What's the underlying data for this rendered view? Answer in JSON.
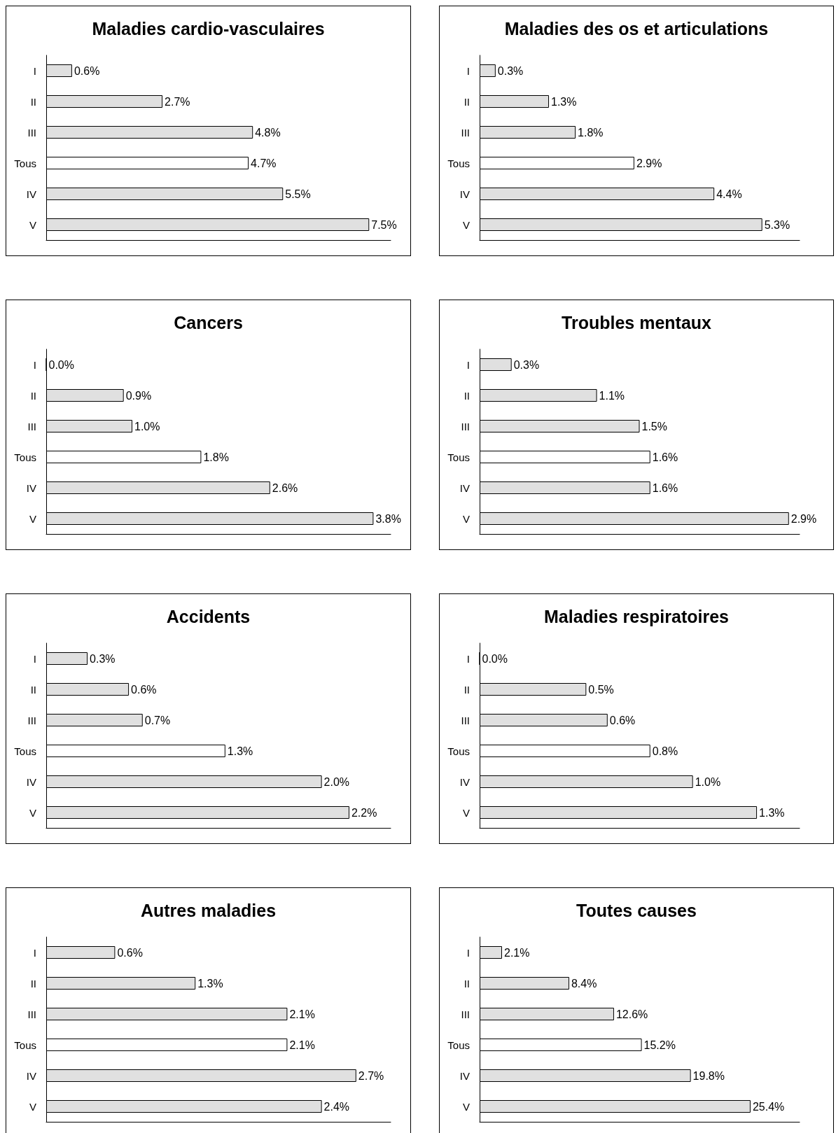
{
  "chart_data": [
    {
      "type": "bar",
      "orientation": "horizontal",
      "title": "Maladies cardio-vasculaires",
      "categories": [
        "I",
        "II",
        "III",
        "Tous",
        "IV",
        "V"
      ],
      "values": [
        0.6,
        2.7,
        4.8,
        4.7,
        5.5,
        7.5
      ],
      "value_labels": [
        "0.6%",
        "2.7%",
        "4.8%",
        "4.7%",
        "5.5%",
        "7.5%"
      ],
      "colors": [
        "#e0e0e0",
        "#e0e0e0",
        "#e0e0e0",
        "#ffffff",
        "#e0e0e0",
        "#e0e0e0"
      ],
      "tick_labels": "y",
      "grid": false
    },
    {
      "type": "bar",
      "orientation": "horizontal",
      "title": "Maladies des os et articulations",
      "categories": [
        "I",
        "II",
        "III",
        "Tous",
        "IV",
        "V"
      ],
      "values": [
        0.3,
        1.3,
        1.8,
        2.9,
        4.4,
        5.3
      ],
      "value_labels": [
        "0.3%",
        "1.3%",
        "1.8%",
        "2.9%",
        "4.4%",
        "5.3%"
      ],
      "colors": [
        "#e0e0e0",
        "#e0e0e0",
        "#e0e0e0",
        "#ffffff",
        "#e0e0e0",
        "#e0e0e0"
      ],
      "tick_labels": "y",
      "grid": false
    },
    {
      "type": "bar",
      "orientation": "horizontal",
      "title": "Cancers",
      "categories": [
        "I",
        "II",
        "III",
        "Tous",
        "IV",
        "V"
      ],
      "values": [
        0.0,
        0.9,
        1.0,
        1.8,
        2.6,
        3.8
      ],
      "value_labels": [
        "0.0%",
        "0.9%",
        "1.0%",
        "1.8%",
        "2.6%",
        "3.8%"
      ],
      "colors": [
        "#e0e0e0",
        "#e0e0e0",
        "#e0e0e0",
        "#ffffff",
        "#e0e0e0",
        "#e0e0e0"
      ],
      "tick_labels": "y",
      "grid": false
    },
    {
      "type": "bar",
      "orientation": "horizontal",
      "title": "Troubles mentaux",
      "categories": [
        "I",
        "II",
        "III",
        "Tous",
        "IV",
        "V"
      ],
      "values": [
        0.3,
        1.1,
        1.5,
        1.6,
        1.6,
        2.9
      ],
      "value_labels": [
        "0.3%",
        "1.1%",
        "1.5%",
        "1.6%",
        "1.6%",
        "2.9%"
      ],
      "colors": [
        "#e0e0e0",
        "#e0e0e0",
        "#e0e0e0",
        "#ffffff",
        "#e0e0e0",
        "#e0e0e0"
      ],
      "tick_labels": "y",
      "grid": false
    },
    {
      "type": "bar",
      "orientation": "horizontal",
      "title": "Accidents",
      "categories": [
        "I",
        "II",
        "III",
        "Tous",
        "IV",
        "V"
      ],
      "values": [
        0.3,
        0.6,
        0.7,
        1.3,
        2.0,
        2.2
      ],
      "value_labels": [
        "0.3%",
        "0.6%",
        "0.7%",
        "1.3%",
        "2.0%",
        "2.2%"
      ],
      "colors": [
        "#e0e0e0",
        "#e0e0e0",
        "#e0e0e0",
        "#ffffff",
        "#e0e0e0",
        "#e0e0e0"
      ],
      "tick_labels": "y",
      "grid": false
    },
    {
      "type": "bar",
      "orientation": "horizontal",
      "title": "Maladies respiratoires",
      "categories": [
        "I",
        "II",
        "III",
        "Tous",
        "IV",
        "V"
      ],
      "values": [
        0.0,
        0.5,
        0.6,
        0.8,
        1.0,
        1.3
      ],
      "value_labels": [
        "0.0%",
        "0.5%",
        "0.6%",
        "0.8%",
        "1.0%",
        "1.3%"
      ],
      "colors": [
        "#e0e0e0",
        "#e0e0e0",
        "#e0e0e0",
        "#ffffff",
        "#e0e0e0",
        "#e0e0e0"
      ],
      "tick_labels": "y",
      "grid": false
    },
    {
      "type": "bar",
      "orientation": "horizontal",
      "title": "Autres maladies",
      "categories": [
        "I",
        "II",
        "III",
        "Tous",
        "IV",
        "V"
      ],
      "values": [
        0.6,
        1.3,
        2.1,
        2.1,
        2.7,
        2.4
      ],
      "value_labels": [
        "0.6%",
        "1.3%",
        "2.1%",
        "2.1%",
        "2.7%",
        "2.4%"
      ],
      "colors": [
        "#e0e0e0",
        "#e0e0e0",
        "#e0e0e0",
        "#ffffff",
        "#e0e0e0",
        "#e0e0e0"
      ],
      "tick_labels": "y",
      "grid": false
    },
    {
      "type": "bar",
      "orientation": "horizontal",
      "title": "Toutes causes",
      "categories": [
        "I",
        "II",
        "III",
        "Tous",
        "IV",
        "V"
      ],
      "values": [
        2.1,
        8.4,
        12.6,
        15.2,
        19.8,
        25.4
      ],
      "value_labels": [
        "2.1%",
        "8.4%",
        "12.6%",
        "15.2%",
        "19.8%",
        "25.4%"
      ],
      "colors": [
        "#e0e0e0",
        "#e0e0e0",
        "#e0e0e0",
        "#ffffff",
        "#e0e0e0",
        "#e0e0e0"
      ],
      "tick_labels": "y",
      "grid": false
    }
  ]
}
